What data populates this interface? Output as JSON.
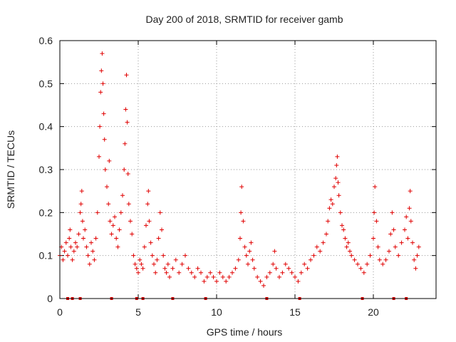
{
  "chart_data": {
    "type": "scatter",
    "title": "Day 200 of 2018, SRMTID for receiver gamb",
    "xlabel": "GPS time / hours",
    "ylabel": "SRMTID / TECUs",
    "xlim": [
      0,
      24
    ],
    "ylim": [
      0,
      0.6
    ],
    "xticks": [
      "0",
      "5",
      "10",
      "15",
      "20"
    ],
    "xtick_values": [
      0,
      5,
      10,
      15,
      20
    ],
    "yticks": [
      "0",
      "0.1",
      "0.2",
      "0.3",
      "0.4",
      "0.5",
      "0.6"
    ],
    "ytick_values": [
      0,
      0.1,
      0.2,
      0.3,
      0.4,
      0.5,
      0.6
    ],
    "grid": true,
    "marker": "+",
    "color": "#e00000",
    "series": [
      {
        "name": "SRMTID",
        "points": [
          [
            0.0,
            0.1
          ],
          [
            0.1,
            0.12
          ],
          [
            0.2,
            0.09
          ],
          [
            0.3,
            0.11
          ],
          [
            0.4,
            0.13
          ],
          [
            0.5,
            0.1
          ],
          [
            0.6,
            0.14
          ],
          [
            0.65,
            0.16
          ],
          [
            0.7,
            0.12
          ],
          [
            0.8,
            0.09
          ],
          [
            0.9,
            0.11
          ],
          [
            1.0,
            0.13
          ],
          [
            1.1,
            0.12
          ],
          [
            1.2,
            0.15
          ],
          [
            1.3,
            0.2
          ],
          [
            1.35,
            0.22
          ],
          [
            1.4,
            0.25
          ],
          [
            1.45,
            0.18
          ],
          [
            1.5,
            0.14
          ],
          [
            1.6,
            0.16
          ],
          [
            1.7,
            0.12
          ],
          [
            1.8,
            0.1
          ],
          [
            1.9,
            0.08
          ],
          [
            2.0,
            0.13
          ],
          [
            2.1,
            0.11
          ],
          [
            2.2,
            0.09
          ],
          [
            2.3,
            0.14
          ],
          [
            2.4,
            0.2
          ],
          [
            2.5,
            0.33
          ],
          [
            2.55,
            0.4
          ],
          [
            2.6,
            0.48
          ],
          [
            2.65,
            0.53
          ],
          [
            2.7,
            0.57
          ],
          [
            2.75,
            0.5
          ],
          [
            2.8,
            0.43
          ],
          [
            2.85,
            0.37
          ],
          [
            2.9,
            0.3
          ],
          [
            3.0,
            0.26
          ],
          [
            3.1,
            0.22
          ],
          [
            3.15,
            0.32
          ],
          [
            3.2,
            0.18
          ],
          [
            3.3,
            0.15
          ],
          [
            3.4,
            0.17
          ],
          [
            3.5,
            0.19
          ],
          [
            3.6,
            0.14
          ],
          [
            3.7,
            0.12
          ],
          [
            3.8,
            0.16
          ],
          [
            3.9,
            0.2
          ],
          [
            4.0,
            0.24
          ],
          [
            4.1,
            0.3
          ],
          [
            4.15,
            0.36
          ],
          [
            4.2,
            0.44
          ],
          [
            4.25,
            0.52
          ],
          [
            4.3,
            0.41
          ],
          [
            4.35,
            0.29
          ],
          [
            4.4,
            0.22
          ],
          [
            4.5,
            0.18
          ],
          [
            4.6,
            0.15
          ],
          [
            4.7,
            0.1
          ],
          [
            4.8,
            0.08
          ],
          [
            4.9,
            0.07
          ],
          [
            5.0,
            0.06
          ],
          [
            5.1,
            0.09
          ],
          [
            5.2,
            0.08
          ],
          [
            5.3,
            0.07
          ],
          [
            5.4,
            0.12
          ],
          [
            5.5,
            0.17
          ],
          [
            5.6,
            0.22
          ],
          [
            5.65,
            0.25
          ],
          [
            5.7,
            0.18
          ],
          [
            5.8,
            0.13
          ],
          [
            5.9,
            0.1
          ],
          [
            6.0,
            0.08
          ],
          [
            6.1,
            0.06
          ],
          [
            6.2,
            0.09
          ],
          [
            6.3,
            0.14
          ],
          [
            6.4,
            0.2
          ],
          [
            6.5,
            0.16
          ],
          [
            6.6,
            0.1
          ],
          [
            6.7,
            0.07
          ],
          [
            6.8,
            0.06
          ],
          [
            6.9,
            0.08
          ],
          [
            7.0,
            0.05
          ],
          [
            7.2,
            0.07
          ],
          [
            7.4,
            0.09
          ],
          [
            7.6,
            0.06
          ],
          [
            7.8,
            0.08
          ],
          [
            8.0,
            0.1
          ],
          [
            8.2,
            0.07
          ],
          [
            8.4,
            0.06
          ],
          [
            8.6,
            0.05
          ],
          [
            8.8,
            0.07
          ],
          [
            9.0,
            0.06
          ],
          [
            9.2,
            0.04
          ],
          [
            9.4,
            0.05
          ],
          [
            9.6,
            0.06
          ],
          [
            9.8,
            0.05
          ],
          [
            10.0,
            0.04
          ],
          [
            10.2,
            0.06
          ],
          [
            10.4,
            0.05
          ],
          [
            10.6,
            0.04
          ],
          [
            10.8,
            0.05
          ],
          [
            11.0,
            0.06
          ],
          [
            11.2,
            0.07
          ],
          [
            11.4,
            0.09
          ],
          [
            11.5,
            0.14
          ],
          [
            11.55,
            0.2
          ],
          [
            11.6,
            0.26
          ],
          [
            11.7,
            0.18
          ],
          [
            11.8,
            0.12
          ],
          [
            11.9,
            0.1
          ],
          [
            12.0,
            0.08
          ],
          [
            12.1,
            0.11
          ],
          [
            12.2,
            0.13
          ],
          [
            12.3,
            0.09
          ],
          [
            12.4,
            0.07
          ],
          [
            12.6,
            0.05
          ],
          [
            12.8,
            0.04
          ],
          [
            13.0,
            0.03
          ],
          [
            13.2,
            0.05
          ],
          [
            13.4,
            0.06
          ],
          [
            13.6,
            0.08
          ],
          [
            13.7,
            0.11
          ],
          [
            13.8,
            0.07
          ],
          [
            14.0,
            0.05
          ],
          [
            14.2,
            0.06
          ],
          [
            14.4,
            0.08
          ],
          [
            14.6,
            0.07
          ],
          [
            14.8,
            0.06
          ],
          [
            15.0,
            0.05
          ],
          [
            15.2,
            0.04
          ],
          [
            15.4,
            0.06
          ],
          [
            15.6,
            0.08
          ],
          [
            15.8,
            0.07
          ],
          [
            16.0,
            0.09
          ],
          [
            16.2,
            0.1
          ],
          [
            16.4,
            0.12
          ],
          [
            16.6,
            0.11
          ],
          [
            16.8,
            0.13
          ],
          [
            17.0,
            0.15
          ],
          [
            17.1,
            0.18
          ],
          [
            17.2,
            0.21
          ],
          [
            17.3,
            0.23
          ],
          [
            17.4,
            0.22
          ],
          [
            17.5,
            0.26
          ],
          [
            17.6,
            0.28
          ],
          [
            17.65,
            0.31
          ],
          [
            17.7,
            0.33
          ],
          [
            17.75,
            0.27
          ],
          [
            17.8,
            0.24
          ],
          [
            17.9,
            0.2
          ],
          [
            18.0,
            0.17
          ],
          [
            18.1,
            0.16
          ],
          [
            18.2,
            0.14
          ],
          [
            18.3,
            0.12
          ],
          [
            18.4,
            0.13
          ],
          [
            18.5,
            0.11
          ],
          [
            18.6,
            0.1
          ],
          [
            18.8,
            0.09
          ],
          [
            19.0,
            0.08
          ],
          [
            19.2,
            0.07
          ],
          [
            19.4,
            0.06
          ],
          [
            19.6,
            0.08
          ],
          [
            19.8,
            0.1
          ],
          [
            20.0,
            0.14
          ],
          [
            20.05,
            0.2
          ],
          [
            20.1,
            0.26
          ],
          [
            20.2,
            0.18
          ],
          [
            20.3,
            0.12
          ],
          [
            20.4,
            0.09
          ],
          [
            20.6,
            0.08
          ],
          [
            20.8,
            0.09
          ],
          [
            21.0,
            0.11
          ],
          [
            21.1,
            0.15
          ],
          [
            21.2,
            0.2
          ],
          [
            21.3,
            0.16
          ],
          [
            21.4,
            0.12
          ],
          [
            21.6,
            0.1
          ],
          [
            21.8,
            0.13
          ],
          [
            22.0,
            0.16
          ],
          [
            22.1,
            0.19
          ],
          [
            22.2,
            0.14
          ],
          [
            22.3,
            0.21
          ],
          [
            22.35,
            0.25
          ],
          [
            22.4,
            0.18
          ],
          [
            22.5,
            0.13
          ],
          [
            22.6,
            0.09
          ],
          [
            22.7,
            0.07
          ],
          [
            22.8,
            0.1
          ],
          [
            22.9,
            0.12
          ]
        ]
      }
    ],
    "zero_markers_x": [
      0.5,
      0.8,
      1.3,
      3.3,
      4.9,
      5.3,
      7.2,
      9.3,
      13.2,
      15.3,
      19.3,
      21.3,
      22.1
    ]
  }
}
